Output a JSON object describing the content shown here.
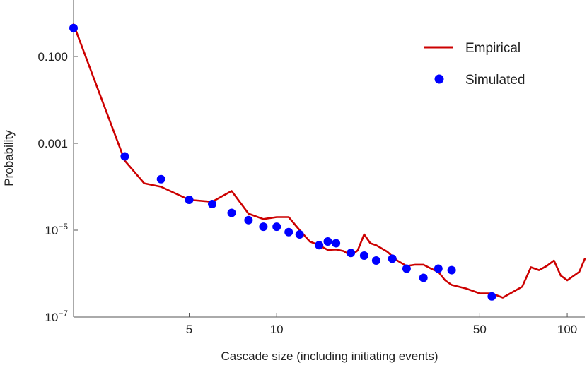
{
  "chart_data": {
    "type": "line",
    "xlabel": "Cascade size (including initiating events)",
    "ylabel": "Probability",
    "x_scale": "log",
    "y_scale": "log",
    "xlim": [
      2.0,
      115
    ],
    "ylim": [
      1e-07,
      2
    ],
    "x_ticks": [
      {
        "value": 5,
        "label": "5"
      },
      {
        "value": 10,
        "label": "10"
      },
      {
        "value": 50,
        "label": "50"
      },
      {
        "value": 100,
        "label": "100"
      }
    ],
    "y_ticks": [
      {
        "value": 1e-07,
        "base": "10",
        "exp": "−7"
      },
      {
        "value": 1e-05,
        "base": "10",
        "exp": "−5"
      },
      {
        "value": 0.001,
        "label": "0.001"
      },
      {
        "value": 0.1,
        "label": "0.100"
      }
    ],
    "legend_position": "top-right",
    "grid": false,
    "series": [
      {
        "name": "Empirical",
        "style": "line",
        "color": "#cc0000",
        "x": [
          2,
          3,
          3.5,
          4,
          5,
          6,
          7,
          8,
          9,
          10,
          11,
          12,
          13,
          14,
          15,
          16,
          17,
          18,
          19,
          20,
          21,
          22,
          24,
          26,
          28,
          30,
          32,
          34,
          36,
          38,
          40,
          45,
          50,
          55,
          60,
          70,
          75,
          80,
          85,
          90,
          95,
          100,
          110,
          115
        ],
        "y": [
          0.55,
          0.0004,
          0.00012,
          0.0001,
          5e-05,
          4.5e-05,
          8e-05,
          2.4e-05,
          1.8e-05,
          2e-05,
          2e-05,
          1e-05,
          5.5e-06,
          4.5e-06,
          3.5e-06,
          3.6e-06,
          3.3e-06,
          2.6e-06,
          3.4e-06,
          8e-06,
          5e-06,
          4.5e-06,
          3.2e-06,
          2e-06,
          1.5e-06,
          1.6e-06,
          1.6e-06,
          1.3e-06,
          1.1e-06,
          7e-07,
          5.5e-07,
          4.5e-07,
          3.5e-07,
          3.5e-07,
          2.8e-07,
          5e-07,
          1.4e-06,
          1.2e-06,
          1.5e-06,
          2e-06,
          9e-07,
          7e-07,
          1.1e-06,
          2.2e-06
        ]
      },
      {
        "name": "Simulated",
        "style": "scatter",
        "color": "#0000ff",
        "x": [
          2,
          3,
          4,
          5,
          6,
          7,
          8,
          9,
          10,
          11,
          12,
          14,
          15,
          16,
          18,
          20,
          22,
          25,
          28,
          32,
          36,
          40,
          55
        ],
        "y": [
          0.45,
          0.0005,
          0.00015,
          5e-05,
          4e-05,
          2.5e-05,
          1.7e-05,
          1.2e-05,
          1.2e-05,
          9e-06,
          8e-06,
          4.5e-06,
          5.5e-06,
          5e-06,
          3e-06,
          2.6e-06,
          2e-06,
          2.2e-06,
          1.3e-06,
          8e-07,
          1.3e-06,
          1.2e-06,
          3e-07
        ]
      }
    ]
  }
}
